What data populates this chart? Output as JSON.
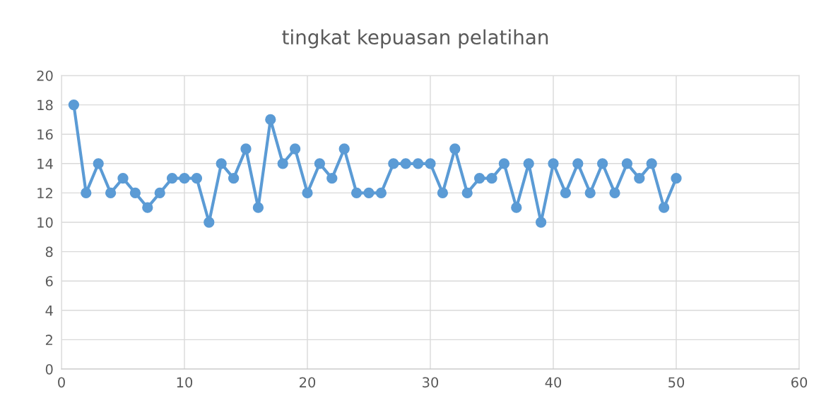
{
  "chart_data": {
    "type": "line",
    "title": "tingkat kepuasan pelatihan",
    "x": [
      1,
      2,
      3,
      4,
      5,
      6,
      7,
      8,
      9,
      10,
      11,
      12,
      13,
      14,
      15,
      16,
      17,
      18,
      19,
      20,
      21,
      22,
      23,
      24,
      25,
      26,
      27,
      28,
      29,
      30,
      31,
      32,
      33,
      34,
      35,
      36,
      37,
      38,
      39,
      40,
      41,
      42,
      43,
      44,
      45,
      46,
      47,
      48,
      49,
      50
    ],
    "values": [
      18,
      12,
      14,
      12,
      13,
      12,
      11,
      12,
      13,
      13,
      13,
      10,
      14,
      13,
      15,
      11,
      17,
      14,
      15,
      12,
      14,
      13,
      15,
      12,
      12,
      12,
      14,
      14,
      14,
      14,
      12,
      15,
      12,
      13,
      13,
      14,
      11,
      14,
      10,
      14,
      12,
      14,
      12,
      14,
      12,
      14,
      13,
      14,
      11,
      13
    ],
    "color": "#5b9bd5",
    "marker": "circle",
    "line_style": "solid",
    "xlim": [
      0,
      60
    ],
    "xticks": [
      0,
      10,
      20,
      30,
      40,
      50,
      60
    ],
    "ylim": [
      0,
      20
    ],
    "yticks": [
      0,
      2,
      4,
      6,
      8,
      10,
      12,
      14,
      16,
      18,
      20
    ],
    "grid": true
  }
}
